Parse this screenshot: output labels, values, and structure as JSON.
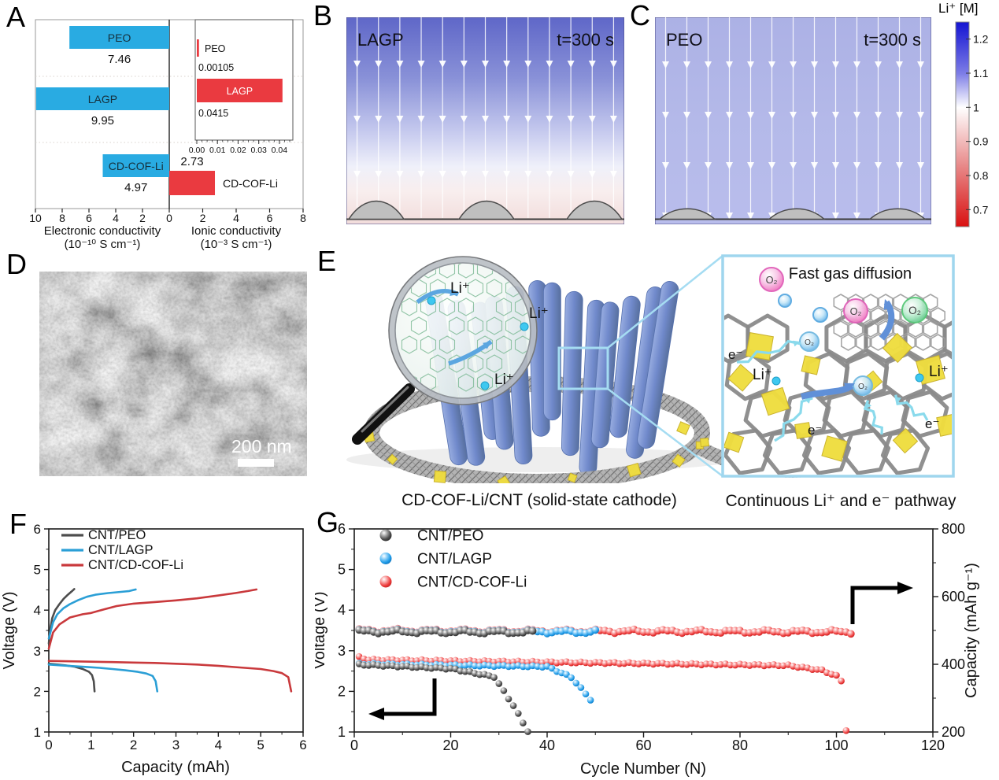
{
  "figure": {
    "panel_labels": {
      "a": "A",
      "b": "B",
      "c": "C",
      "d": "D",
      "e": "E",
      "f": "F",
      "g": "G"
    }
  },
  "simulation": {
    "b": {
      "material": "LAGP",
      "time": "t=300 s"
    },
    "c": {
      "material": "PEO",
      "time": "t=300 s"
    },
    "colorbar": {
      "title": "Li⁺ [M]",
      "tick_labels": [
        "1.2",
        "1.1",
        "1",
        "0.9",
        "0.8",
        "0.7"
      ],
      "range_top": 1.25,
      "range_bottom": 0.65,
      "top_color": "#1414D2",
      "mid_color": "#FFFFFF",
      "bottom_color": "#D91111"
    }
  },
  "panel_d": {
    "scale_label": "200 nm"
  },
  "panel_e": {
    "caption_left": "CD-COF-Li/CNT (solid-state cathode)",
    "caption_right": "Continuous Li⁺ and e⁻ pathway",
    "inset_title": "Fast gas diffusion",
    "li": "Li⁺",
    "electron": "e⁻",
    "o2": "O₂"
  },
  "chart_data": [
    {
      "id": "panel-a",
      "type": "bar",
      "layout": "diverging-horizontal",
      "categories": [
        "PEO",
        "LAGP",
        "CD-COF-Li"
      ],
      "left": {
        "title_line1": "Electronic conductivity",
        "title_line2": "(10⁻¹⁰ S cm⁻¹)",
        "range": [
          0,
          10
        ],
        "ticks": [
          10,
          8,
          6,
          4,
          2
        ],
        "color": "#29ABE2",
        "values": [
          7.46,
          9.95,
          4.97
        ],
        "value_labels": [
          "7.46",
          "9.95",
          "4.97"
        ]
      },
      "right": {
        "title_line1": "Ionic conductivity",
        "title_line2": "(10⁻³ S cm⁻¹)",
        "range": [
          0,
          8
        ],
        "ticks": [
          2,
          4,
          6,
          8
        ],
        "color": "#EA3A40",
        "values": [
          0.00105,
          0.0415,
          2.73
        ],
        "value_labels": [
          "0.00105",
          "0.0415",
          "2.73"
        ],
        "bar_label": "CD-COF-Li"
      },
      "center_tick": "0",
      "inset": {
        "range": [
          0,
          0.045
        ],
        "ticks": [
          "0.00",
          "0.01",
          "0.02",
          "0.03",
          "0.04"
        ],
        "tick_values": [
          0,
          0.01,
          0.02,
          0.03,
          0.04
        ],
        "bars": [
          {
            "label": "PEO",
            "value": 0.00105,
            "value_label": "0.00105"
          },
          {
            "label": "LAGP",
            "value": 0.0415,
            "value_label": "0.0415"
          }
        ]
      }
    },
    {
      "id": "panel-f",
      "type": "line",
      "xlabel": "Capacity (mAh)",
      "ylabel": "Voltage (V)",
      "xlim": [
        0,
        6
      ],
      "ylim": [
        1,
        6
      ],
      "xticks": [
        0,
        1,
        2,
        3,
        4,
        5,
        6
      ],
      "yticks": [
        1,
        2,
        3,
        4,
        5,
        6
      ],
      "legend": [
        {
          "label": "CNT/PEO",
          "color": "#4D4D4D"
        },
        {
          "label": "CNT/LAGP",
          "color": "#2B9FD6"
        },
        {
          "label": "CNT/CD-COF-Li",
          "color": "#C9393C"
        }
      ],
      "series": [
        {
          "name": "CNT/PEO charge",
          "color": "#4D4D4D",
          "points": [
            [
              0,
              3.18
            ],
            [
              0.03,
              3.5
            ],
            [
              0.08,
              3.8
            ],
            [
              0.15,
              4.0
            ],
            [
              0.25,
              4.15
            ],
            [
              0.35,
              4.28
            ],
            [
              0.45,
              4.38
            ],
            [
              0.55,
              4.47
            ],
            [
              0.6,
              4.52
            ]
          ]
        },
        {
          "name": "CNT/PEO discharge",
          "color": "#4D4D4D",
          "points": [
            [
              0,
              2.68
            ],
            [
              0.2,
              2.66
            ],
            [
              0.4,
              2.64
            ],
            [
              0.6,
              2.61
            ],
            [
              0.8,
              2.55
            ],
            [
              0.95,
              2.48
            ],
            [
              1.02,
              2.4
            ],
            [
              1.06,
              2.25
            ],
            [
              1.08,
              2.0
            ]
          ]
        },
        {
          "name": "CNT/LAGP charge",
          "color": "#2B9FD6",
          "points": [
            [
              0,
              3.3
            ],
            [
              0.1,
              3.7
            ],
            [
              0.2,
              3.9
            ],
            [
              0.35,
              4.05
            ],
            [
              0.5,
              4.15
            ],
            [
              0.7,
              4.25
            ],
            [
              0.9,
              4.33
            ],
            [
              1.1,
              4.38
            ],
            [
              1.4,
              4.42
            ],
            [
              1.7,
              4.45
            ],
            [
              1.9,
              4.47
            ],
            [
              2.05,
              4.51
            ]
          ]
        },
        {
          "name": "CNT/LAGP discharge",
          "color": "#2B9FD6",
          "points": [
            [
              0,
              2.66
            ],
            [
              0.3,
              2.64
            ],
            [
              0.6,
              2.62
            ],
            [
              0.9,
              2.6
            ],
            [
              1.2,
              2.58
            ],
            [
              1.5,
              2.55
            ],
            [
              1.8,
              2.52
            ],
            [
              2.1,
              2.48
            ],
            [
              2.3,
              2.44
            ],
            [
              2.45,
              2.38
            ],
            [
              2.52,
              2.25
            ],
            [
              2.56,
              2.0
            ]
          ]
        },
        {
          "name": "CNT/CD-COF-Li charge",
          "color": "#C9393C",
          "points": [
            [
              0,
              3.05
            ],
            [
              0.1,
              3.45
            ],
            [
              0.25,
              3.65
            ],
            [
              0.5,
              3.82
            ],
            [
              0.8,
              3.9
            ],
            [
              1.0,
              3.93
            ],
            [
              1.3,
              4.02
            ],
            [
              1.6,
              4.1
            ],
            [
              2.0,
              4.16
            ],
            [
              2.5,
              4.2
            ],
            [
              3.0,
              4.24
            ],
            [
              3.5,
              4.29
            ],
            [
              4.0,
              4.36
            ],
            [
              4.4,
              4.42
            ],
            [
              4.7,
              4.47
            ],
            [
              4.9,
              4.51
            ]
          ]
        },
        {
          "name": "CNT/CD-COF-Li discharge",
          "color": "#C9393C",
          "points": [
            [
              0,
              2.75
            ],
            [
              0.5,
              2.74
            ],
            [
              1.0,
              2.73
            ],
            [
              1.5,
              2.72
            ],
            [
              2.0,
              2.71
            ],
            [
              2.5,
              2.7
            ],
            [
              3.0,
              2.68
            ],
            [
              3.5,
              2.66
            ],
            [
              4.0,
              2.63
            ],
            [
              4.5,
              2.59
            ],
            [
              5.0,
              2.55
            ],
            [
              5.3,
              2.5
            ],
            [
              5.5,
              2.45
            ],
            [
              5.65,
              2.35
            ],
            [
              5.72,
              2.0
            ]
          ]
        }
      ]
    },
    {
      "id": "panel-g",
      "type": "scatter",
      "xlabel": "Cycle Number (N)",
      "ylabel_left": "Voltage (V)",
      "ylabel_right": "Capacity (mAh g⁻¹)",
      "xlim": [
        0,
        120
      ],
      "xticks": [
        0,
        20,
        40,
        60,
        80,
        100,
        120
      ],
      "ylim_left": [
        1,
        6
      ],
      "yticks_left": [
        1,
        2,
        3,
        4,
        5,
        6
      ],
      "ylim_right": [
        200,
        800
      ],
      "yticks_right": [
        200,
        400,
        600,
        800
      ],
      "legend": [
        {
          "label": "CNT/PEO",
          "color_key": "gray"
        },
        {
          "label": "CNT/LAGP",
          "color_key": "blue"
        },
        {
          "label": "CNT/CD-COF-Li",
          "color_key": "red"
        }
      ],
      "marker_colors": {
        "gray": {
          "base": "#4A4A4A",
          "light": "#A8A8A8",
          "dark": "#1E1E1E"
        },
        "blue": {
          "base": "#1E9BE8",
          "light": "#8ED0F8",
          "dark": "#0E63A8"
        },
        "red": {
          "base": "#EE3B3B",
          "light": "#F9A6A6",
          "dark": "#B01818"
        }
      },
      "series": [
        {
          "name": "CNT/CD-COF-Li",
          "quantity": "Capacity",
          "axis": "right",
          "color_key": "red",
          "segments": [
            [
              1,
              103,
              500,
              496
            ]
          ]
        },
        {
          "name": "CNT/LAGP",
          "quantity": "Capacity",
          "axis": "right",
          "color_key": "blue",
          "segments": [
            [
              1,
              50,
              498,
              496
            ]
          ]
        },
        {
          "name": "CNT/PEO",
          "quantity": "Capacity",
          "axis": "right",
          "color_key": "gray",
          "segments": [
            [
              1,
              37,
              497,
              495
            ]
          ]
        },
        {
          "name": "CNT/CD-COF-Li",
          "quantity": "Voltage",
          "axis": "left",
          "color_key": "red",
          "segments": [
            [
              1,
              3,
              2.84,
              2.78
            ],
            [
              3,
              90,
              2.78,
              2.64
            ],
            [
              90,
              97,
              2.64,
              2.52
            ],
            [
              97,
              100,
              2.52,
              2.38
            ],
            [
              100,
              101,
              2.38,
              2.26
            ]
          ],
          "extra_points": [
            [
              102,
              1.05
            ]
          ]
        },
        {
          "name": "CNT/LAGP",
          "quantity": "Voltage",
          "axis": "left",
          "color_key": "blue",
          "segments": [
            [
              1,
              40,
              2.68,
              2.61
            ],
            [
              40,
              45,
              2.61,
              2.35
            ],
            [
              45,
              49,
              2.35,
              1.8
            ]
          ]
        },
        {
          "name": "CNT/PEO",
          "quantity": "Voltage",
          "axis": "left",
          "color_key": "gray",
          "segments": [
            [
              1,
              20,
              2.66,
              2.56
            ],
            [
              20,
              29,
              2.56,
              2.36
            ],
            [
              29,
              33,
              2.36,
              1.65
            ],
            [
              33,
              36,
              1.65,
              1.02
            ]
          ]
        }
      ]
    }
  ]
}
